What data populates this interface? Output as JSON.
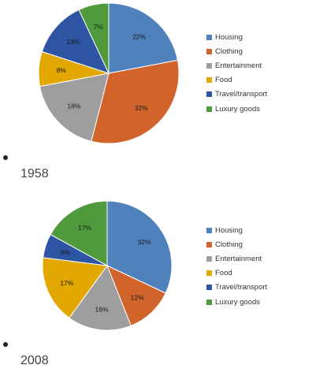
{
  "chart_data": [
    {
      "type": "pie",
      "caption": "1958",
      "categories": [
        "Housing",
        "Clothing",
        "Entertainment",
        "Food",
        "Travel/transport",
        "Luxury goods"
      ],
      "values": [
        22,
        32,
        18,
        8,
        13,
        7
      ],
      "data_labels": [
        "22%",
        "32%",
        "18%",
        "8%",
        "13%",
        "7%"
      ],
      "colors": [
        "#4f81bd",
        "#c0504d",
        "#9e9e9e",
        "#e2a700",
        "#2e54a4",
        "#4e9a3c"
      ],
      "legend_position": "right"
    },
    {
      "type": "pie",
      "caption": "2008",
      "categories": [
        "Housing",
        "Clothing",
        "Entertainment",
        "Food",
        "Travel/transport",
        "Luxury goods"
      ],
      "values": [
        32,
        12,
        16,
        17,
        6,
        17
      ],
      "data_labels": [
        "32%",
        "12%",
        "16%",
        "17%",
        "6%",
        "17%"
      ],
      "colors": [
        "#4f81bd",
        "#c0504d",
        "#9e9e9e",
        "#e2a700",
        "#2e54a4",
        "#4e9a3c"
      ],
      "legend_position": "right"
    }
  ],
  "palette": {
    "Housing": "#4f81bd",
    "Clothing": "#d0642a",
    "Entertainment": "#9e9e9e",
    "Food": "#e2a700",
    "Travel/transport": "#2e54a4",
    "Luxury goods": "#4e9a3c"
  }
}
